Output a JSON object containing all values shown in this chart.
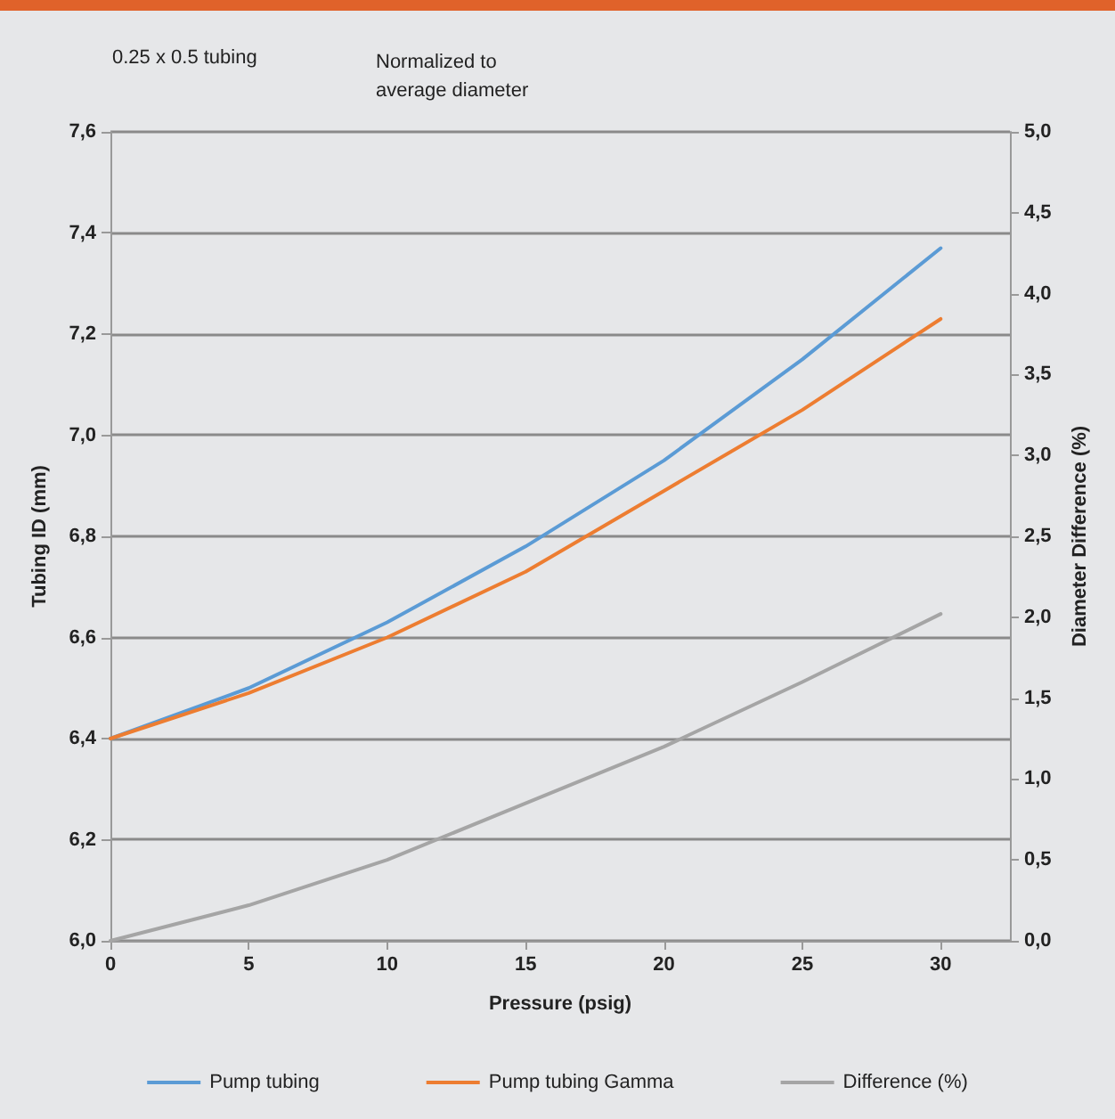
{
  "chart_data": {
    "type": "line",
    "title": "0.25 x 0.5 tubing",
    "subtitle": "Normalized to\naverage diameter",
    "xlabel": "Pressure (psig)",
    "ylabel": "Tubing ID (mm)",
    "y2label": "Diameter Difference (%)",
    "x": [
      0,
      5,
      10,
      15,
      20,
      25,
      30
    ],
    "series": [
      {
        "name": "Pump tubing",
        "color": "#5b9bd5",
        "values": [
          6.4,
          6.5,
          6.63,
          6.78,
          6.95,
          7.15,
          7.37
        ]
      },
      {
        "name": "Pump tubing Gamma",
        "color": "#ed7d31",
        "values": [
          6.4,
          6.49,
          6.6,
          6.73,
          6.89,
          7.05,
          7.23
        ]
      },
      {
        "name": "Difference (%)",
        "color": "#a5a5a5",
        "axis": "y2",
        "values": [
          0,
          0.22,
          0.5,
          0.85,
          1.2,
          1.6,
          2.02
        ]
      }
    ],
    "xlim": [
      0,
      32.5
    ],
    "xticks": [
      0,
      5,
      10,
      15,
      20,
      25,
      30
    ],
    "ylim": [
      6.0,
      7.6
    ],
    "yticks": [
      {
        "value": 6.0,
        "label": "6,0"
      },
      {
        "value": 6.2,
        "label": "6,2"
      },
      {
        "value": 6.4,
        "label": "6,4"
      },
      {
        "value": 6.6,
        "label": "6,6"
      },
      {
        "value": 6.8,
        "label": "6,8"
      },
      {
        "value": 7.0,
        "label": "7,0"
      },
      {
        "value": 7.2,
        "label": "7,2"
      },
      {
        "value": 7.4,
        "label": "7,4"
      },
      {
        "value": 7.6,
        "label": "7,6"
      }
    ],
    "y2lim": [
      0,
      5
    ],
    "y2ticks": [
      {
        "value": 0,
        "label": "0,0"
      },
      {
        "value": 0.5,
        "label": "0,5"
      },
      {
        "value": 1,
        "label": "1,0"
      },
      {
        "value": 1.5,
        "label": "1,5"
      },
      {
        "value": 2,
        "label": "2,0"
      },
      {
        "value": 2.5,
        "label": "2,5"
      },
      {
        "value": 3,
        "label": "3,0"
      },
      {
        "value": 3.5,
        "label": "3,5"
      },
      {
        "value": 4,
        "label": "4,0"
      },
      {
        "value": 4.5,
        "label": "4,5"
      },
      {
        "value": 5,
        "label": "5,0"
      }
    ],
    "grid": "y",
    "legend": "bottom",
    "marker": "none",
    "line_style": "solid"
  }
}
